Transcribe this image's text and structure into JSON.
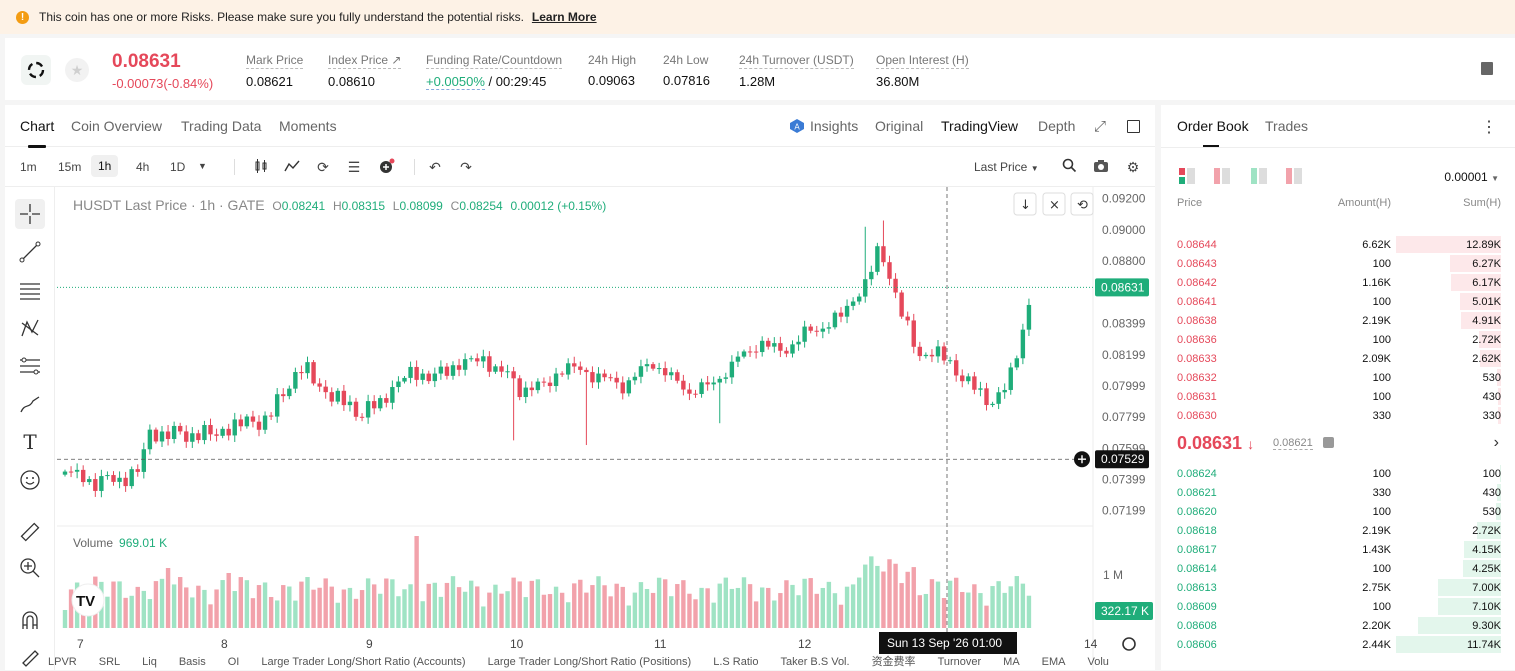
{
  "notice": {
    "text": "This coin has one or more Risks. Please make sure you fully understand the potential risks.",
    "link": "Learn More"
  },
  "ticker": {
    "price": "0.08631",
    "change": "-0.00073(-0.84%)",
    "stats": [
      {
        "label": "Mark Price",
        "value": "0.08621"
      },
      {
        "label": "Index Price ↗",
        "value": "0.08610"
      },
      {
        "label": "Funding Rate/Countdown",
        "value_green": "+0.0050%",
        "value": " / 00:29:45"
      },
      {
        "label": "24h High",
        "value": "0.09063"
      },
      {
        "label": "24h Low",
        "value": "0.07816"
      },
      {
        "label": "24h Turnover (USDT)",
        "value": "1.28M"
      },
      {
        "label": "Open Interest (H)",
        "value": "36.80M"
      }
    ]
  },
  "chart_tabs": [
    "Chart",
    "Coin Overview",
    "Trading Data",
    "Moments"
  ],
  "chart_right_tabs": [
    "Insights",
    "Original",
    "TradingView",
    "Depth"
  ],
  "intervals": [
    "1m",
    "15m",
    "1h",
    "4h",
    "1D"
  ],
  "last_price_select": "Last Price",
  "legend": {
    "symbol": "HUSDT Last Price · 1h · GATE",
    "o": "0.08241",
    "h": "0.08315",
    "l": "0.08099",
    "c": "0.08254",
    "chg": "0.00012 (+0.15%)"
  },
  "volume_label": "Volume",
  "volume_value": "969.01 K",
  "price_axis": [
    "0.09200",
    "0.09000",
    "0.08800",
    "0.08399",
    "0.08199",
    "0.07999",
    "0.07799",
    "0.07599",
    "0.07399",
    "0.07199"
  ],
  "current_price_tag": "0.08631",
  "cross_price_tag": "0.07529",
  "volume_axis": "1 M",
  "volume_tag": "322.17 K",
  "time_axis": [
    "7",
    "8",
    "9",
    "10",
    "11",
    "12",
    "14"
  ],
  "crosshair_time": "Sun 13 Sep '26   01:00",
  "bottom_indicators": [
    "LPVR",
    "SRL",
    "Liq",
    "Basis",
    "OI",
    "Large Trader Long/Short Ratio (Accounts)",
    "Large Trader Long/Short Ratio (Positions)",
    "L.S Ratio",
    "Taker B.S Vol.",
    "资金费率",
    "Turnover",
    "MA",
    "EMA",
    "Volu"
  ],
  "orderbook": {
    "tabs": [
      "Order Book",
      "Trades"
    ],
    "precision": "0.00001",
    "headers": [
      "Price",
      "Amount(H)",
      "Sum(H)"
    ],
    "asks": [
      {
        "p": "0.08644",
        "a": "6.62K",
        "s": "12.89K",
        "depth": 1.0
      },
      {
        "p": "0.08643",
        "a": "100",
        "s": "6.27K",
        "depth": 0.49
      },
      {
        "p": "0.08642",
        "a": "1.16K",
        "s": "6.17K",
        "depth": 0.48
      },
      {
        "p": "0.08641",
        "a": "100",
        "s": "5.01K",
        "depth": 0.39
      },
      {
        "p": "0.08638",
        "a": "2.19K",
        "s": "4.91K",
        "depth": 0.38
      },
      {
        "p": "0.08636",
        "a": "100",
        "s": "2.72K",
        "depth": 0.21
      },
      {
        "p": "0.08633",
        "a": "2.09K",
        "s": "2.62K",
        "depth": 0.2
      },
      {
        "p": "0.08632",
        "a": "100",
        "s": "530",
        "depth": 0.04
      },
      {
        "p": "0.08631",
        "a": "100",
        "s": "430",
        "depth": 0.03
      },
      {
        "p": "0.08630",
        "a": "330",
        "s": "330",
        "depth": 0.026
      }
    ],
    "mid": "0.08631",
    "mid_sub": "0.08621",
    "bids": [
      {
        "p": "0.08624",
        "a": "100",
        "s": "100",
        "depth": 0.009
      },
      {
        "p": "0.08621",
        "a": "330",
        "s": "430",
        "depth": 0.037
      },
      {
        "p": "0.08620",
        "a": "100",
        "s": "530",
        "depth": 0.045
      },
      {
        "p": "0.08618",
        "a": "2.19K",
        "s": "2.72K",
        "depth": 0.23
      },
      {
        "p": "0.08617",
        "a": "1.43K",
        "s": "4.15K",
        "depth": 0.35
      },
      {
        "p": "0.08614",
        "a": "100",
        "s": "4.25K",
        "depth": 0.36
      },
      {
        "p": "0.08613",
        "a": "2.75K",
        "s": "7.00K",
        "depth": 0.6
      },
      {
        "p": "0.08609",
        "a": "100",
        "s": "7.10K",
        "depth": 0.6
      },
      {
        "p": "0.08608",
        "a": "2.20K",
        "s": "9.30K",
        "depth": 0.79
      },
      {
        "p": "0.08606",
        "a": "2.44K",
        "s": "11.74K",
        "depth": 1.0
      }
    ]
  },
  "colors": {
    "up": "#1fad7a",
    "down": "#e5485a",
    "up_vol": "#9fe3c4",
    "down_vol": "#f2a2ab"
  }
}
